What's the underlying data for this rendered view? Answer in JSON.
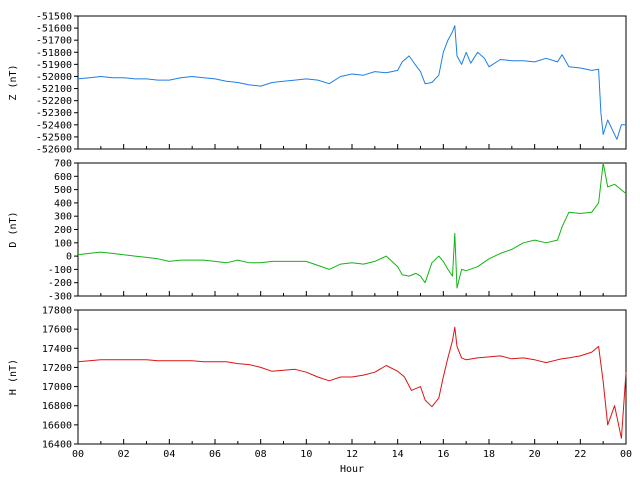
{
  "chart_data": [
    {
      "type": "line",
      "ylabel": "Z (nT)",
      "xlabel": "",
      "ylim": [
        -52600,
        -51500
      ],
      "yticks": [
        -51500,
        -51600,
        -51700,
        -51800,
        -51900,
        -52000,
        -52100,
        -52200,
        -52300,
        -52400,
        -52500,
        -52600
      ],
      "xlim": [
        0,
        24
      ],
      "xticks": [],
      "color": "#1e7ee6",
      "series": [
        {
          "x": [
            0,
            0.5,
            1,
            1.5,
            2,
            2.5,
            3,
            3.5,
            4,
            4.5,
            5,
            5.5,
            6,
            6.5,
            7,
            7.5,
            8,
            8.5,
            9,
            9.5,
            10,
            10.5,
            11,
            11.5,
            12,
            12.5,
            13,
            13.5,
            14,
            14.2,
            14.5,
            14.8,
            15,
            15.2,
            15.5,
            15.8,
            16,
            16.2,
            16.4,
            16.5,
            16.6,
            16.8,
            17,
            17.2,
            17.5,
            17.8,
            18,
            18.5,
            19,
            19.5,
            20,
            20.5,
            21,
            21.2,
            21.5,
            22,
            22.5,
            22.8,
            22.9,
            23,
            23.2,
            23.4,
            23.6,
            23.8,
            24
          ],
          "y": [
            -52020,
            -52010,
            -52000,
            -52010,
            -52010,
            -52020,
            -52020,
            -52030,
            -52030,
            -52010,
            -52000,
            -52010,
            -52020,
            -52040,
            -52050,
            -52070,
            -52080,
            -52050,
            -52040,
            -52030,
            -52020,
            -52030,
            -52060,
            -52000,
            -51980,
            -51990,
            -51960,
            -51970,
            -51950,
            -51880,
            -51830,
            -51910,
            -51960,
            -52060,
            -52050,
            -51990,
            -51800,
            -51700,
            -51630,
            -51580,
            -51830,
            -51900,
            -51800,
            -51890,
            -51800,
            -51850,
            -51920,
            -51860,
            -51870,
            -51870,
            -51880,
            -51850,
            -51880,
            -51820,
            -51920,
            -51930,
            -51950,
            -51940,
            -52300,
            -52480,
            -52360,
            -52440,
            -52520,
            -52400,
            -52400
          ]
        }
      ]
    },
    {
      "type": "line",
      "ylabel": "D (nT)",
      "xlabel": "",
      "ylim": [
        -300,
        700
      ],
      "yticks": [
        700,
        600,
        500,
        400,
        300,
        200,
        100,
        0,
        -100,
        -200,
        -300
      ],
      "xlim": [
        0,
        24
      ],
      "xticks": [],
      "color": "#14b414",
      "series": [
        {
          "x": [
            0,
            0.5,
            1,
            1.5,
            2,
            2.5,
            3,
            3.5,
            4,
            4.5,
            5,
            5.5,
            6,
            6.5,
            7,
            7.5,
            8,
            8.5,
            9,
            9.5,
            10,
            10.5,
            11,
            11.5,
            12,
            12.5,
            13,
            13.5,
            14,
            14.2,
            14.5,
            14.8,
            15,
            15.2,
            15.5,
            15.8,
            16,
            16.2,
            16.4,
            16.5,
            16.6,
            16.8,
            17,
            17.5,
            18,
            18.5,
            19,
            19.5,
            20,
            20.5,
            21,
            21.2,
            21.5,
            22,
            22.5,
            22.8,
            23,
            23.2,
            23.5,
            24
          ],
          "y": [
            10,
            20,
            30,
            20,
            10,
            0,
            -10,
            -20,
            -40,
            -30,
            -30,
            -30,
            -40,
            -50,
            -30,
            -50,
            -50,
            -40,
            -40,
            -40,
            -40,
            -70,
            -100,
            -60,
            -50,
            -60,
            -40,
            0,
            -80,
            -140,
            -150,
            -130,
            -150,
            -200,
            -50,
            0,
            -40,
            -100,
            -150,
            170,
            -240,
            -100,
            -110,
            -80,
            -20,
            20,
            50,
            100,
            120,
            100,
            120,
            220,
            330,
            320,
            330,
            400,
            700,
            520,
            540,
            470
          ]
        }
      ]
    },
    {
      "type": "line",
      "ylabel": "H (nT)",
      "xlabel": "Hour",
      "ylim": [
        16400,
        17800
      ],
      "yticks": [
        17800,
        17600,
        17400,
        17200,
        17000,
        16800,
        16600,
        16400
      ],
      "xlim": [
        0,
        24
      ],
      "xticks": [
        "00",
        "02",
        "04",
        "06",
        "08",
        "10",
        "12",
        "14",
        "16",
        "18",
        "20",
        "22",
        "00"
      ],
      "color": "#dc1414",
      "series": [
        {
          "x": [
            0,
            0.5,
            1,
            1.5,
            2,
            2.5,
            3,
            3.5,
            4,
            4.5,
            5,
            5.5,
            6,
            6.5,
            7,
            7.5,
            8,
            8.5,
            9,
            9.5,
            10,
            10.5,
            11,
            11.5,
            12,
            12.5,
            13,
            13.5,
            14,
            14.3,
            14.6,
            15,
            15.2,
            15.5,
            15.8,
            16,
            16.2,
            16.4,
            16.5,
            16.6,
            16.8,
            17,
            17.5,
            18,
            18.5,
            19,
            19.5,
            20,
            20.5,
            21,
            21.2,
            21.5,
            22,
            22.5,
            22.8,
            23,
            23.2,
            23.5,
            23.8,
            24
          ],
          "y": [
            17260,
            17270,
            17280,
            17280,
            17280,
            17280,
            17280,
            17270,
            17270,
            17270,
            17270,
            17260,
            17260,
            17260,
            17240,
            17230,
            17200,
            17160,
            17170,
            17180,
            17150,
            17100,
            17060,
            17100,
            17100,
            17120,
            17150,
            17220,
            17160,
            17100,
            16960,
            17000,
            16860,
            16790,
            16880,
            17100,
            17300,
            17480,
            17620,
            17420,
            17300,
            17280,
            17300,
            17310,
            17320,
            17290,
            17300,
            17280,
            17250,
            17280,
            17290,
            17300,
            17320,
            17360,
            17420,
            17050,
            16600,
            16800,
            16460,
            17150
          ]
        }
      ]
    }
  ]
}
